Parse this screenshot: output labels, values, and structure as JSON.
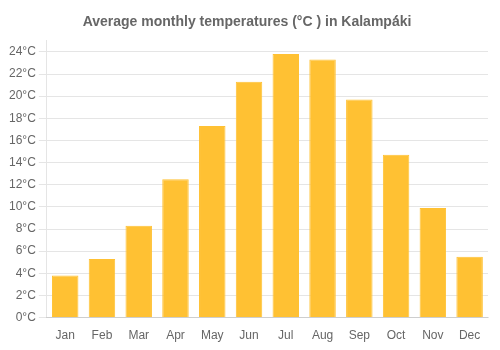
{
  "chart_data": {
    "type": "bar",
    "title": "Average monthly temperatures (°C ) in Kalampá́ki",
    "categories": [
      "Jan",
      "Feb",
      "Mar",
      "Apr",
      "May",
      "Jun",
      "Jul",
      "Aug",
      "Sep",
      "Oct",
      "Nov",
      "Dec"
    ],
    "values": [
      3.8,
      5.3,
      8.3,
      12.5,
      17.3,
      21.3,
      23.8,
      23.3,
      19.7,
      14.7,
      9.9,
      5.5
    ],
    "color": "#FFC133",
    "ylim": [
      0,
      25
    ],
    "yticks": [
      {
        "value": 0,
        "label": "0°C"
      },
      {
        "value": 2,
        "label": "2°C"
      },
      {
        "value": 4,
        "label": "4°C"
      },
      {
        "value": 6,
        "label": "6°C"
      },
      {
        "value": 8,
        "label": "8°C"
      },
      {
        "value": 10,
        "label": "10°C"
      },
      {
        "value": 12,
        "label": "12°C"
      },
      {
        "value": 14,
        "label": "14°C"
      },
      {
        "value": 16,
        "label": "16°C"
      },
      {
        "value": 18,
        "label": "18°C"
      },
      {
        "value": 20,
        "label": "20°C"
      },
      {
        "value": 22,
        "label": "22°C"
      },
      {
        "value": 24,
        "label": "24°C"
      }
    ],
    "grid": true
  }
}
